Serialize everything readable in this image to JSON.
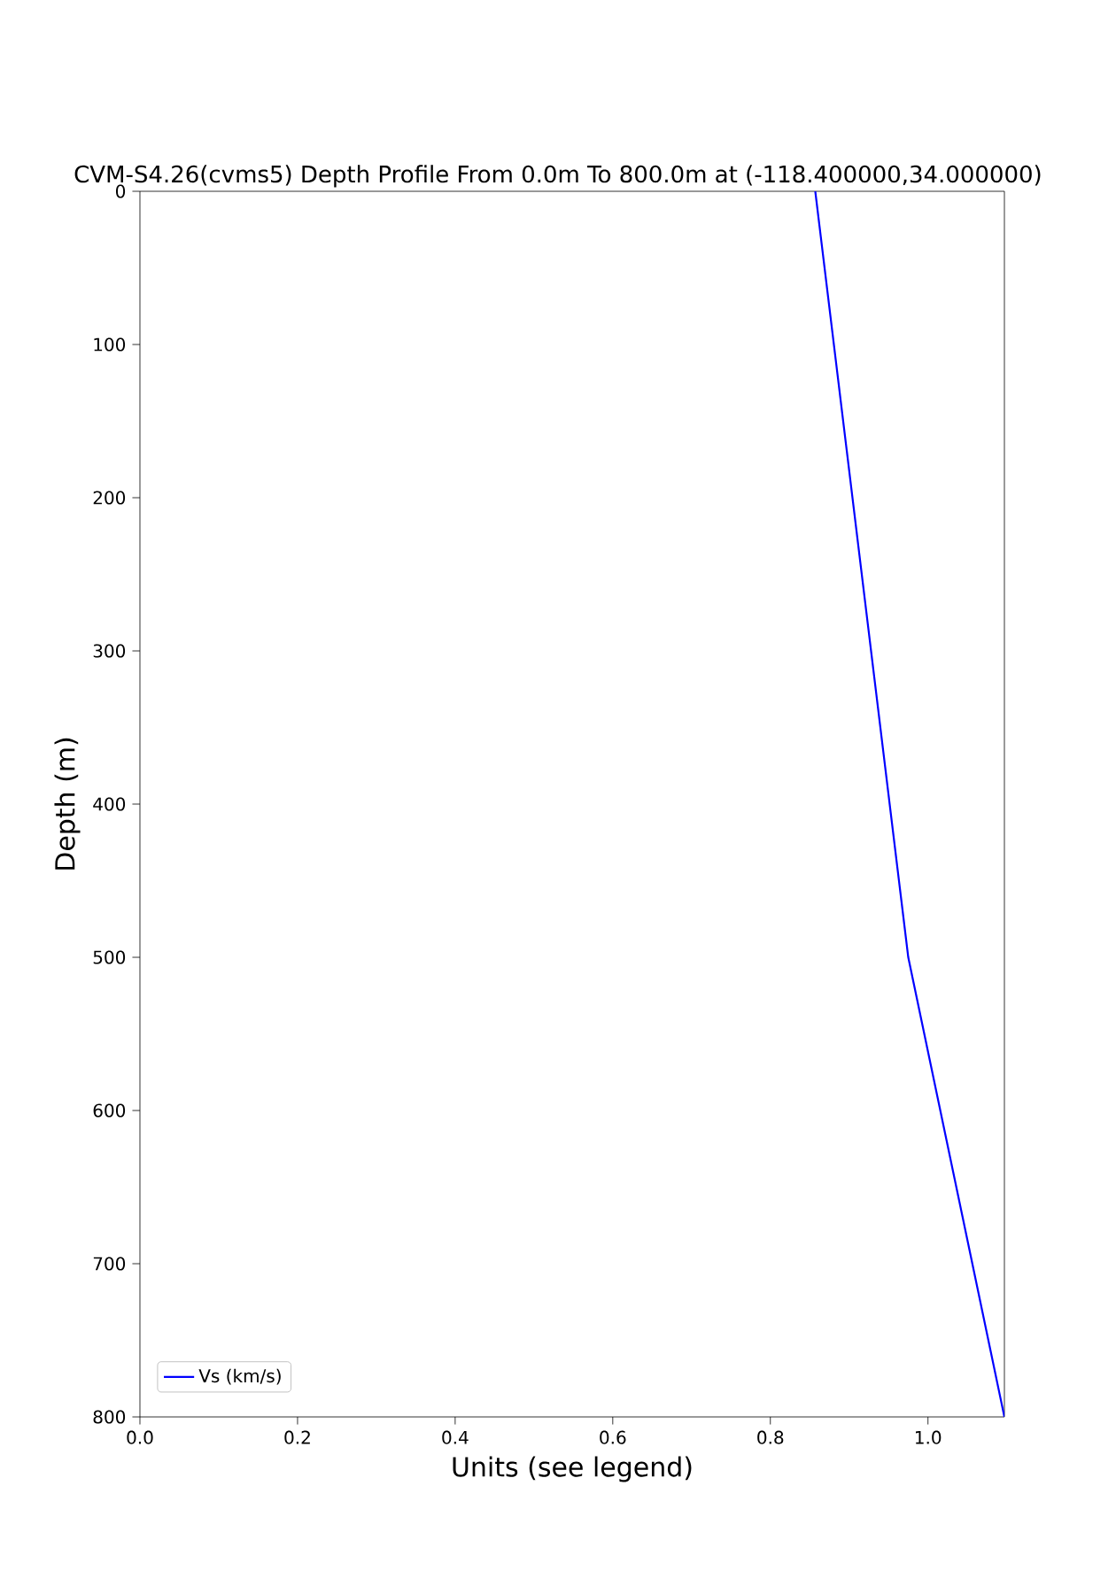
{
  "chart_data": {
    "type": "line",
    "title": "CVM-S4.26(cvms5) Depth Profile From 0.0m To 800.0m at (-118.400000,34.000000)",
    "xlabel": "Units (see legend)",
    "ylabel": "Depth (m)",
    "series": [
      {
        "name": "Vs (km/s)",
        "color": "#0000ff",
        "x": [
          0.857,
          0.975,
          1.097
        ],
        "values": [
          0,
          500,
          800
        ]
      }
    ],
    "xlim": [
      0,
      1.097
    ],
    "ylim": [
      800,
      0
    ],
    "xticks": [
      {
        "value": 0,
        "label": "0.0"
      },
      0.2,
      0.4,
      0.6,
      0.8,
      {
        "value": 1,
        "label": "1.0"
      }
    ],
    "yticks": [
      0,
      100,
      200,
      300,
      400,
      500,
      600,
      700,
      800
    ],
    "legend": "bottom left",
    "grid": false,
    "marker": "none",
    "line_style": "solid"
  }
}
